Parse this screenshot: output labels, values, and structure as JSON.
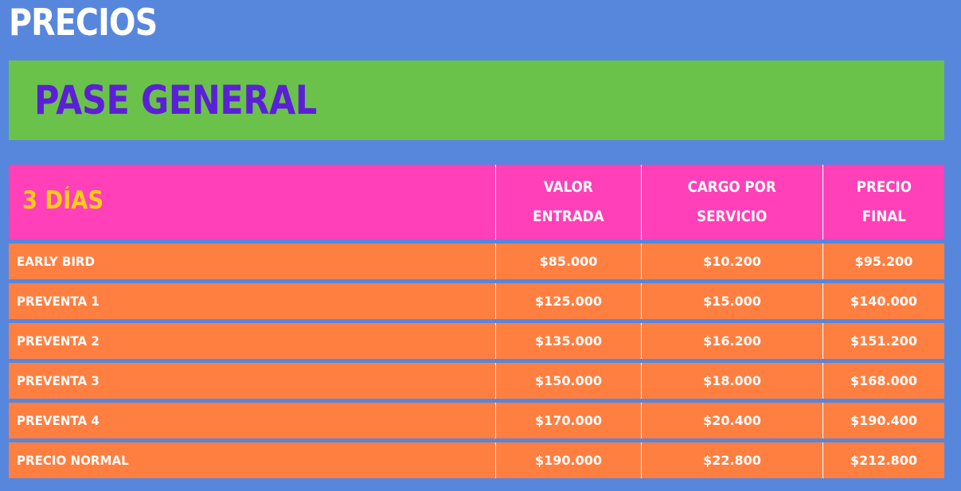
{
  "page": {
    "title": "PRECIOS"
  },
  "pass": {
    "title": "PASE GENERAL"
  },
  "table": {
    "headers": {
      "days": "3 DÍAS",
      "entry_value": "VALOR\nENTRADA",
      "service_charge": "CARGO POR\nSERVICIO",
      "final_price": "PRECIO\nFINAL"
    },
    "rows": [
      {
        "label": "EARLY BIRD",
        "entry_value": "$85.000",
        "service_charge": "$10.200",
        "final_price": "$95.200"
      },
      {
        "label": "PREVENTA 1",
        "entry_value": "$125.000",
        "service_charge": "$15.000",
        "final_price": "$140.000"
      },
      {
        "label": "PREVENTA 2",
        "entry_value": "$135.000",
        "service_charge": "$16.200",
        "final_price": "$151.200"
      },
      {
        "label": "PREVENTA 3",
        "entry_value": "$150.000",
        "service_charge": "$18.000",
        "final_price": "$168.000"
      },
      {
        "label": "PREVENTA 4",
        "entry_value": "$170.000",
        "service_charge": "$20.400",
        "final_price": "$190.400"
      },
      {
        "label": "PRECIO NORMAL",
        "entry_value": "$190.000",
        "service_charge": "$22.800",
        "final_price": "$212.800"
      }
    ]
  },
  "colors": {
    "background": "#5787dc",
    "banner": "#6bc24b",
    "banner_text": "#5b20d6",
    "header_row": "#ff40b8",
    "header_days_text": "#ffcc1a",
    "data_row": "#ff7f41",
    "text": "#ffffff"
  }
}
